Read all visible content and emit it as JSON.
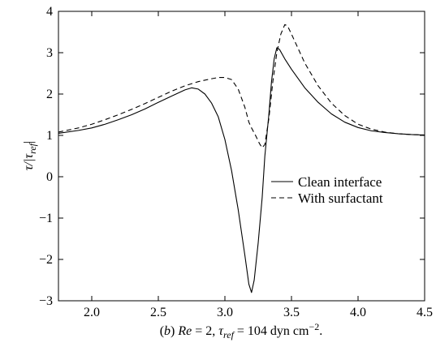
{
  "chart_data": {
    "type": "line",
    "xlim": [
      1.75,
      4.5
    ],
    "ylim": [
      -3,
      4
    ],
    "xticks": [
      2.0,
      2.5,
      3.0,
      3.5,
      4.0,
      4.5
    ],
    "xtick_labels": [
      "2.0",
      "2.5",
      "3.0",
      "3.5",
      "4.0",
      "4.5"
    ],
    "yticks": [
      -3,
      -2,
      -1,
      0,
      1,
      2,
      3,
      4
    ],
    "ytick_labels": [
      "−3",
      "−2",
      "−1",
      "0",
      "1",
      "2",
      "3",
      "4"
    ],
    "ylabel": {
      "main": "τ/|τ",
      "sub": "ref",
      "tail": "|"
    },
    "caption": {
      "prefix": "(",
      "panel": "b",
      "mid1": ") ",
      "re": "Re",
      "mid2": " = 2, ",
      "tau": "τ",
      "sub": "ref",
      "mid3": " = 104 dyn cm",
      "sup": "−2",
      "end": "."
    },
    "legend_position": "center-right",
    "grid": false,
    "series": [
      {
        "name": "Clean interface",
        "dash": "solid",
        "points": [
          [
            1.75,
            1.05
          ],
          [
            1.9,
            1.12
          ],
          [
            2.0,
            1.18
          ],
          [
            2.1,
            1.27
          ],
          [
            2.2,
            1.38
          ],
          [
            2.3,
            1.5
          ],
          [
            2.4,
            1.64
          ],
          [
            2.5,
            1.8
          ],
          [
            2.6,
            1.95
          ],
          [
            2.7,
            2.1
          ],
          [
            2.75,
            2.15
          ],
          [
            2.8,
            2.12
          ],
          [
            2.85,
            2.0
          ],
          [
            2.9,
            1.78
          ],
          [
            2.95,
            1.45
          ],
          [
            3.0,
            0.9
          ],
          [
            3.05,
            0.15
          ],
          [
            3.1,
            -0.8
          ],
          [
            3.15,
            -1.9
          ],
          [
            3.18,
            -2.6
          ],
          [
            3.2,
            -2.8
          ],
          [
            3.22,
            -2.5
          ],
          [
            3.25,
            -1.6
          ],
          [
            3.28,
            -0.5
          ],
          [
            3.3,
            0.5
          ],
          [
            3.33,
            1.5
          ],
          [
            3.35,
            2.3
          ],
          [
            3.37,
            2.85
          ],
          [
            3.39,
            3.12
          ],
          [
            3.41,
            3.08
          ],
          [
            3.45,
            2.85
          ],
          [
            3.5,
            2.6
          ],
          [
            3.6,
            2.15
          ],
          [
            3.7,
            1.8
          ],
          [
            3.8,
            1.52
          ],
          [
            3.9,
            1.32
          ],
          [
            4.0,
            1.19
          ],
          [
            4.1,
            1.11
          ],
          [
            4.2,
            1.07
          ],
          [
            4.3,
            1.04
          ],
          [
            4.4,
            1.02
          ],
          [
            4.5,
            1.01
          ]
        ]
      },
      {
        "name": "With surfactant",
        "dash": "dashed",
        "points": [
          [
            1.75,
            1.08
          ],
          [
            1.9,
            1.18
          ],
          [
            2.0,
            1.27
          ],
          [
            2.1,
            1.38
          ],
          [
            2.2,
            1.5
          ],
          [
            2.3,
            1.63
          ],
          [
            2.4,
            1.77
          ],
          [
            2.5,
            1.92
          ],
          [
            2.6,
            2.07
          ],
          [
            2.7,
            2.2
          ],
          [
            2.8,
            2.3
          ],
          [
            2.9,
            2.37
          ],
          [
            2.95,
            2.4
          ],
          [
            3.0,
            2.4
          ],
          [
            3.05,
            2.35
          ],
          [
            3.1,
            2.12
          ],
          [
            3.15,
            1.68
          ],
          [
            3.18,
            1.32
          ],
          [
            3.2,
            1.18
          ],
          [
            3.23,
            1.0
          ],
          [
            3.26,
            0.8
          ],
          [
            3.28,
            0.7
          ],
          [
            3.3,
            0.78
          ],
          [
            3.33,
            1.4
          ],
          [
            3.36,
            2.3
          ],
          [
            3.39,
            3.0
          ],
          [
            3.42,
            3.45
          ],
          [
            3.45,
            3.68
          ],
          [
            3.47,
            3.65
          ],
          [
            3.5,
            3.45
          ],
          [
            3.55,
            3.1
          ],
          [
            3.6,
            2.75
          ],
          [
            3.7,
            2.2
          ],
          [
            3.8,
            1.78
          ],
          [
            3.9,
            1.48
          ],
          [
            4.0,
            1.27
          ],
          [
            4.1,
            1.15
          ],
          [
            4.2,
            1.08
          ],
          [
            4.3,
            1.04
          ],
          [
            4.4,
            1.02
          ],
          [
            4.5,
            1.01
          ]
        ]
      }
    ]
  }
}
